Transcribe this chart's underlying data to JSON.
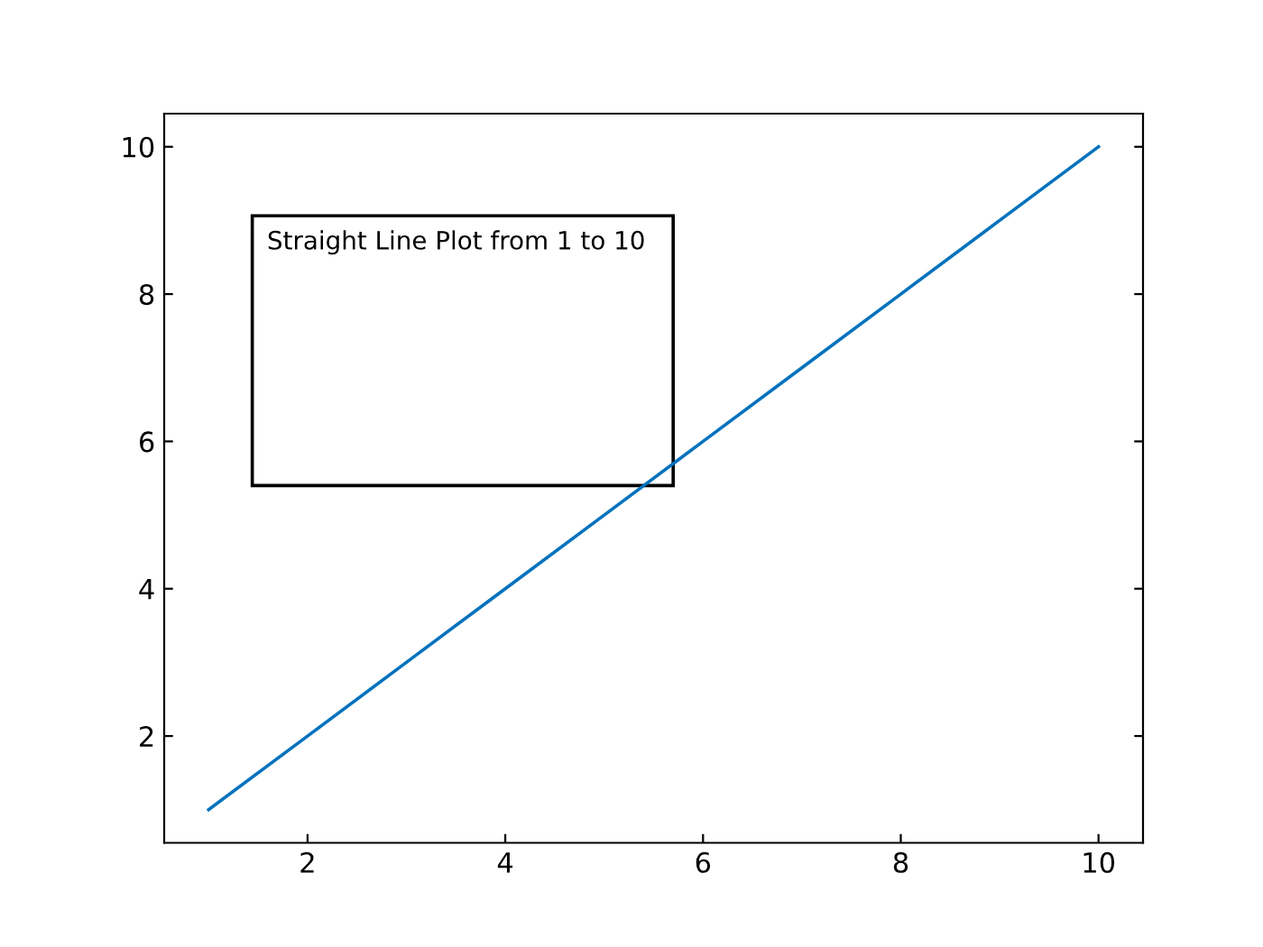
{
  "chart_data": {
    "type": "line",
    "x": [
      1,
      2,
      3,
      4,
      5,
      6,
      7,
      8,
      9,
      10
    ],
    "series": [
      {
        "color": "#0072bd",
        "values": [
          1,
          2,
          3,
          4,
          5,
          6,
          7,
          8,
          9,
          10
        ]
      }
    ],
    "xlim": [
      0.55,
      10.45
    ],
    "ylim": [
      0.55,
      10.45
    ],
    "xticks": [
      2,
      4,
      6,
      8,
      10
    ],
    "yticks": [
      2,
      4,
      6,
      8,
      10
    ],
    "annotations": [
      "Straight Line Plot from 1 to 10"
    ],
    "grid": false,
    "marker": "none",
    "line_style": "solid"
  }
}
